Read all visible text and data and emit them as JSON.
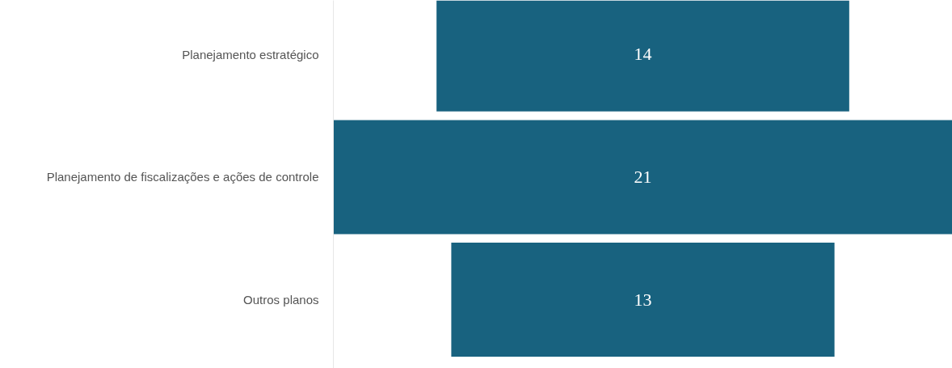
{
  "chart_data": {
    "type": "other",
    "categories": [
      "Planejamento estratégico",
      "Planejamento de fiscalizações e ações de controle",
      "Outros planos"
    ],
    "values": [
      14,
      21,
      13
    ],
    "color": "#18627f",
    "data_labels": true
  }
}
